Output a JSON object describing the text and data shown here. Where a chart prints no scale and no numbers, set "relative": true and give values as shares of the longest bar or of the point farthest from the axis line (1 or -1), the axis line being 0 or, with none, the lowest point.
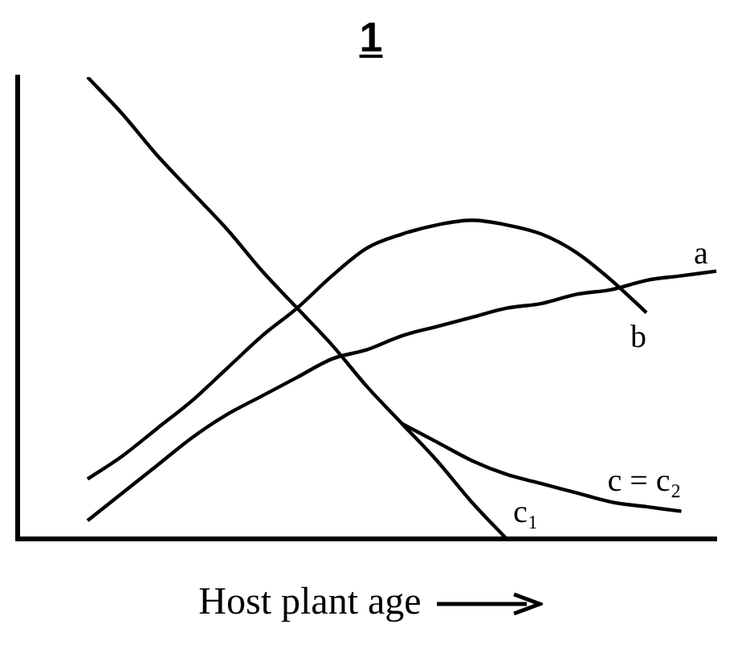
{
  "chart_data": {
    "type": "line",
    "title": "1",
    "xlabel": "Host plant age",
    "relative": true,
    "grid": false,
    "legend": false,
    "marker": "none",
    "categories": [
      null,
      null,
      null,
      null,
      null,
      null,
      null,
      null,
      null,
      null,
      null,
      null,
      null,
      null,
      null,
      null,
      null,
      null,
      null,
      null,
      null
    ],
    "series": [
      {
        "name": "a",
        "color": "#000000",
        "values": [
          null,
          null,
          0.04,
          0.1,
          0.16,
          0.22,
          0.27,
          0.31,
          0.35,
          0.39,
          0.41,
          0.44,
          0.46,
          0.48,
          0.5,
          0.51,
          0.53,
          0.54,
          0.56,
          0.57,
          0.58
        ]
      },
      {
        "name": "b",
        "color": "#000000",
        "values": [
          null,
          null,
          0.13,
          0.18,
          0.24,
          0.3,
          0.37,
          0.44,
          0.5,
          0.57,
          0.63,
          0.66,
          0.68,
          0.69,
          0.68,
          0.66,
          0.62,
          0.56,
          0.49,
          null,
          null
        ]
      },
      {
        "name": "c = c₂",
        "color": "#000000",
        "values": [
          null,
          null,
          null,
          null,
          null,
          null,
          null,
          null,
          null,
          null,
          null,
          0.25,
          0.21,
          0.17,
          0.14,
          0.12,
          0.1,
          0.08,
          0.07,
          0.06,
          null
        ]
      },
      {
        "name": "c₁",
        "color": "#000000",
        "values": [
          null,
          null,
          1.0,
          0.92,
          0.83,
          0.75,
          0.67,
          0.58,
          0.5,
          0.42,
          0.33,
          0.25,
          0.17,
          0.08,
          0.0,
          null,
          null,
          null,
          null,
          null,
          null
        ]
      }
    ]
  }
}
